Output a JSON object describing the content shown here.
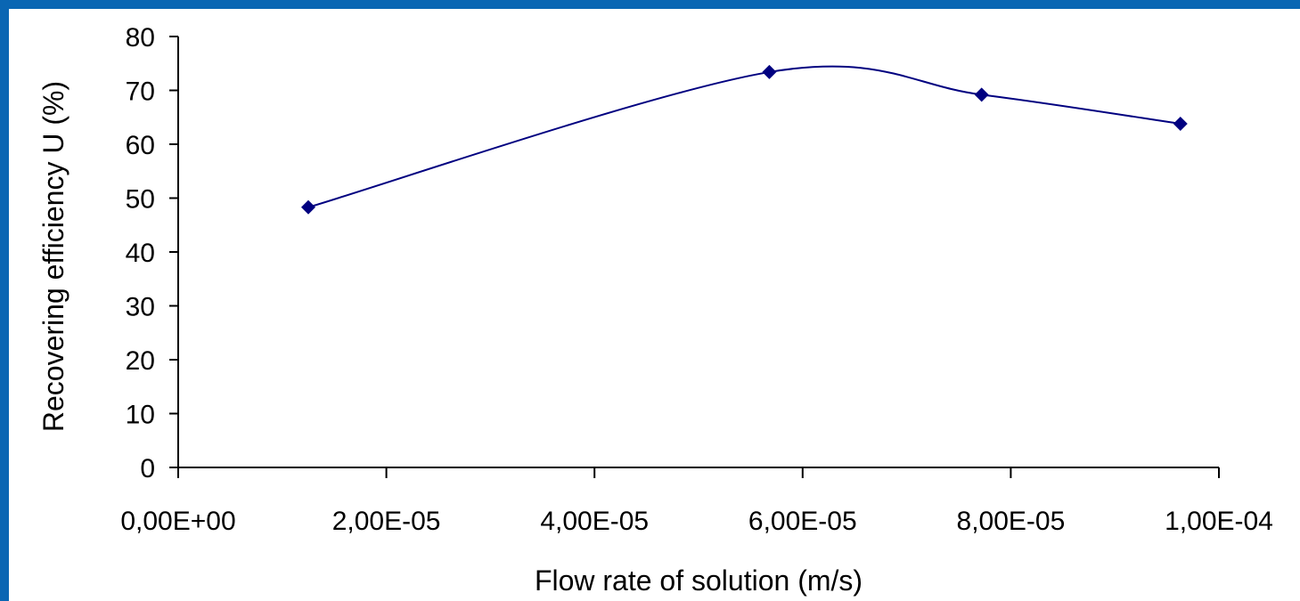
{
  "chart_data": {
    "type": "line",
    "title": "",
    "xlabel": "Flow rate of solution (m/s)",
    "ylabel": "Recovering efficiency U (%)",
    "xlim": [
      0,
      0.0001
    ],
    "ylim": [
      0,
      80
    ],
    "x_ticks": [
      0,
      2e-05,
      4e-05,
      6e-05,
      8e-05,
      0.0001
    ],
    "x_tick_labels": [
      "0,00E+00",
      "2,00E-05",
      "4,00E-05",
      "6,00E-05",
      "8,00E-05",
      "1,00E-04"
    ],
    "y_ticks": [
      0,
      10,
      20,
      30,
      40,
      50,
      60,
      70,
      80
    ],
    "y_tick_labels": [
      "0",
      "10",
      "20",
      "30",
      "40",
      "50",
      "60",
      "70",
      "80"
    ],
    "grid": false,
    "legend": "none",
    "series": [
      {
        "x": [
          1.25e-05,
          5.68e-05,
          7.72e-05,
          9.63e-05
        ],
        "y": [
          48.3,
          73.4,
          69.2,
          63.8
        ],
        "marker": "diamond",
        "smooth": true,
        "color": "#000080"
      }
    ]
  }
}
